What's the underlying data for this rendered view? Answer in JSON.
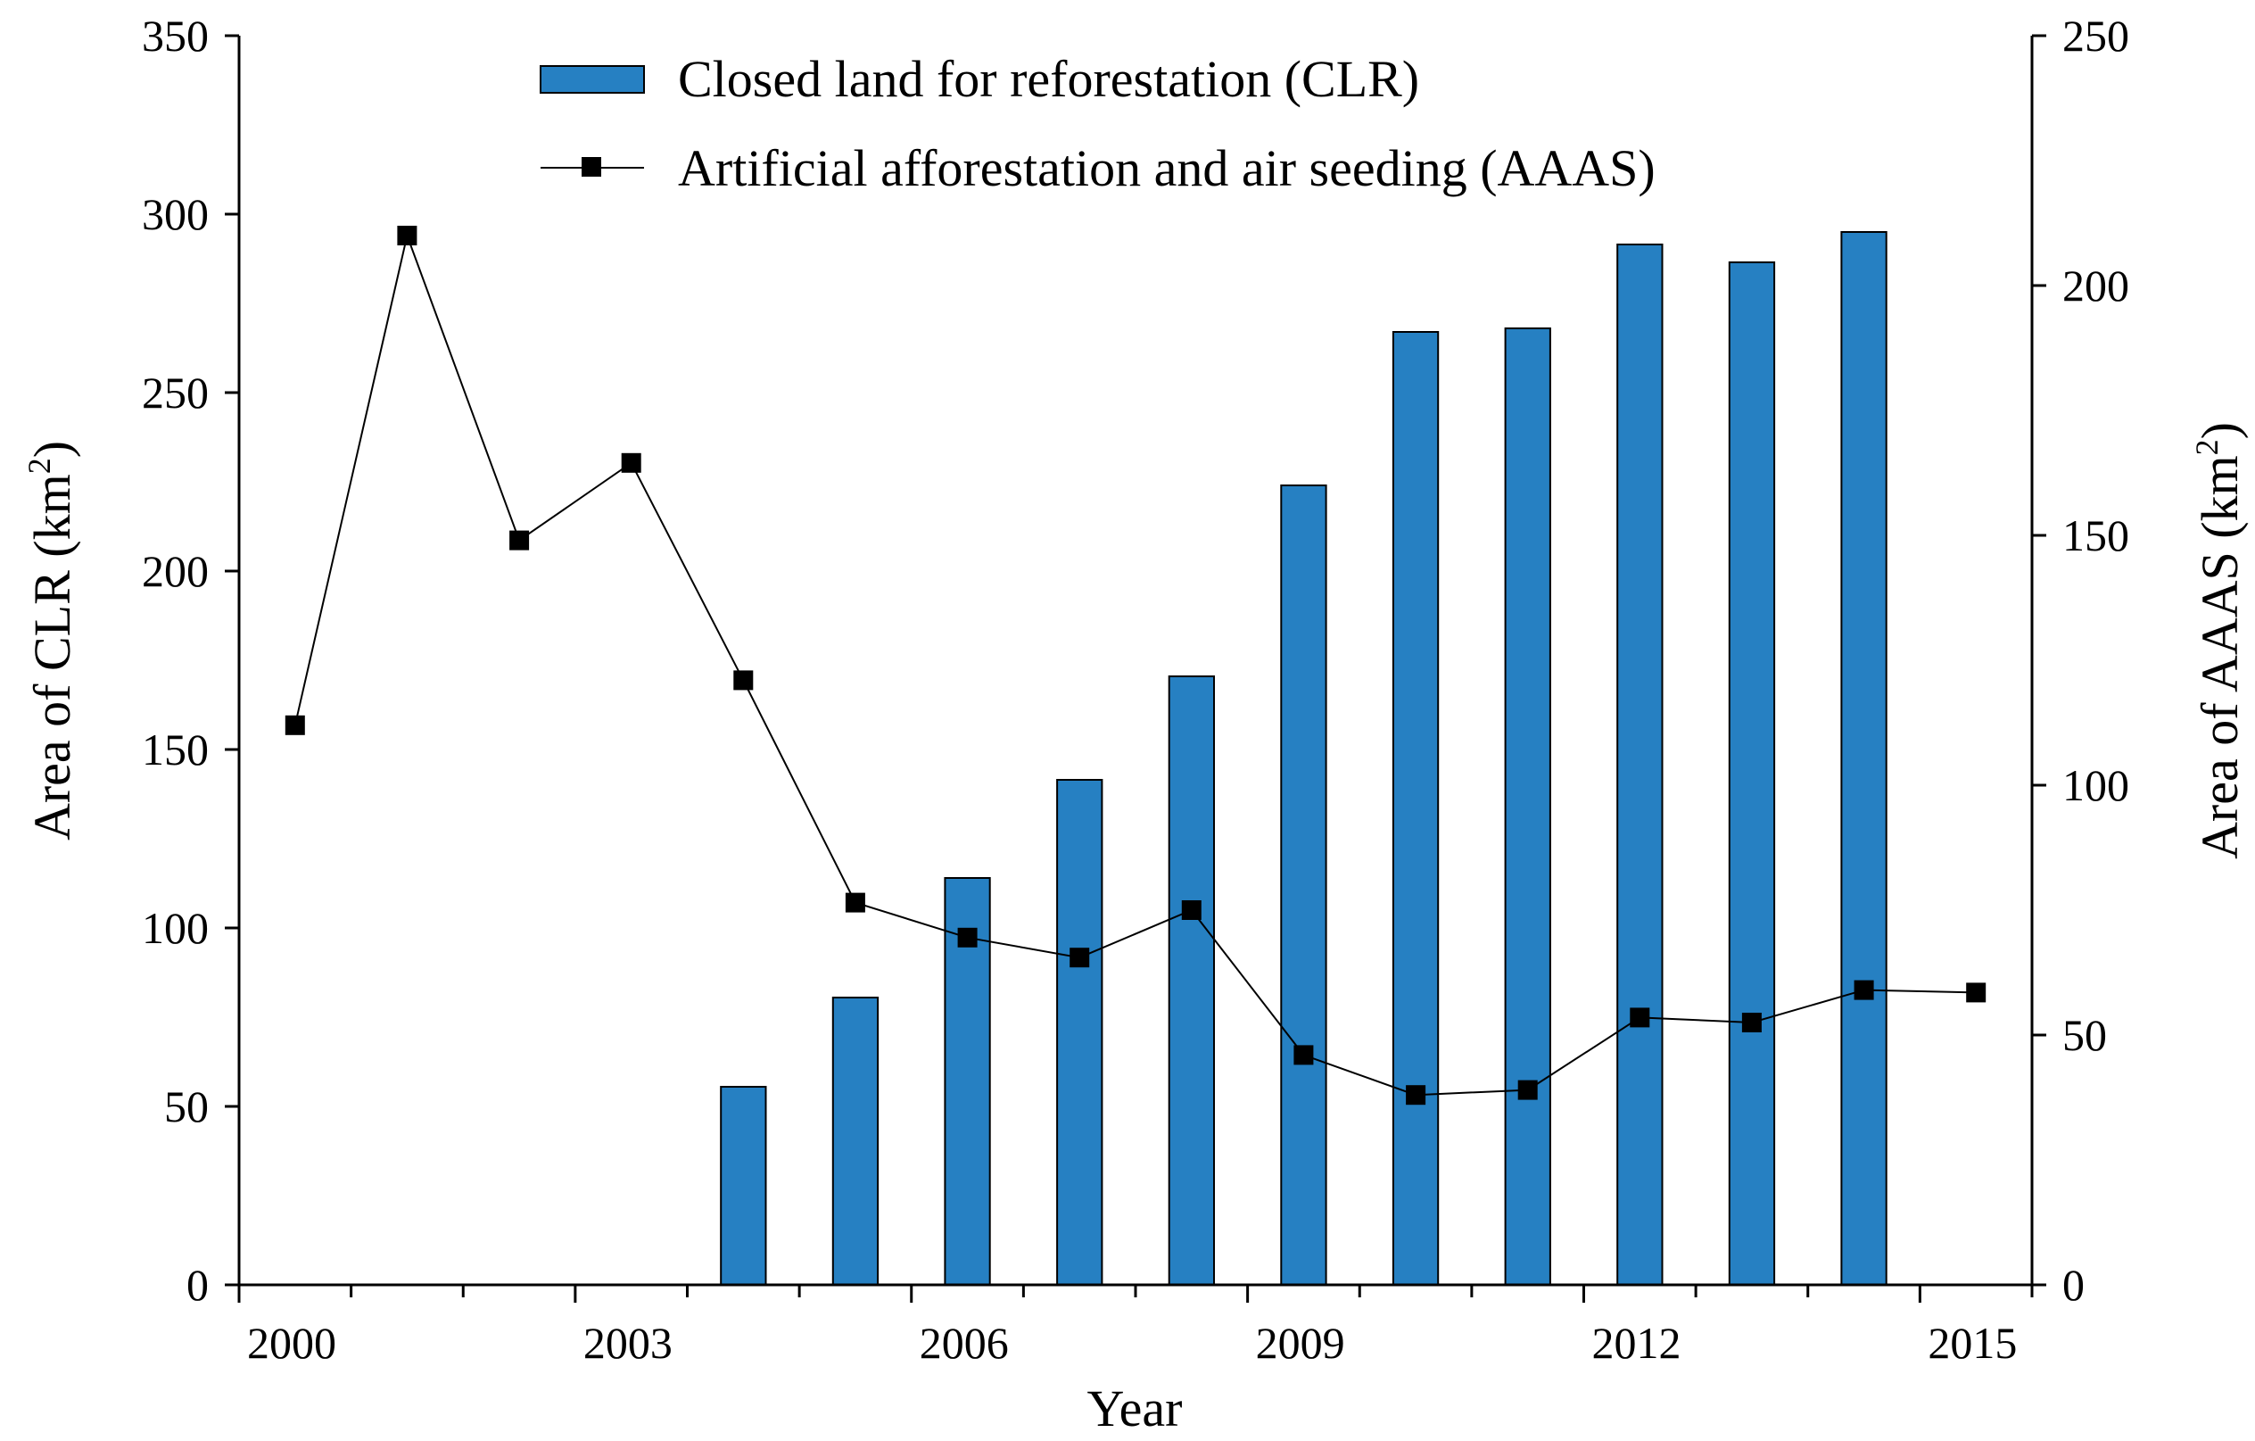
{
  "chart_data": {
    "type": "bar+line",
    "categories": [
      "2000",
      "2001",
      "2002",
      "2003",
      "2004",
      "2005",
      "2006",
      "2007",
      "2008",
      "2009",
      "2010",
      "2011",
      "2012",
      "2013",
      "2014",
      "2015"
    ],
    "series": [
      {
        "name": "Closed land for reforestation (CLR)",
        "type": "bar",
        "axis": "left",
        "color": "#2680C2",
        "values": [
          null,
          null,
          null,
          null,
          55.5,
          80.5,
          114,
          141.5,
          170.5,
          224,
          267,
          268,
          291.5,
          286.5,
          295,
          null
        ]
      },
      {
        "name": "Artificial afforestation and air seeding (AAAS)",
        "type": "line",
        "axis": "right",
        "color": "#000000",
        "values": [
          112,
          210,
          149,
          164.5,
          121,
          76.5,
          69.5,
          65.5,
          75,
          46,
          38,
          39,
          53.5,
          52.5,
          59,
          58.5
        ]
      }
    ],
    "xlabel": "Year",
    "ylabel_left": "Area of CLR (km",
    "ylabel_right": "Area of AAAS (km",
    "ylabel_unit_sup": "2",
    "ylabel_close": ")",
    "ylim_left": [
      0,
      350
    ],
    "ylim_right": [
      0,
      250
    ],
    "yticks_left": [
      0,
      50,
      100,
      150,
      200,
      250,
      300,
      350
    ],
    "yticks_right": [
      0,
      50,
      100,
      150,
      200,
      250
    ],
    "xtick_labels": [
      "2000",
      "2003",
      "2006",
      "2009",
      "2012",
      "2015"
    ],
    "legend": [
      "Closed land for reforestation (CLR)",
      "Artificial afforestation and air seeding (AAAS)"
    ],
    "legend_position": "top-center",
    "grid": false
  }
}
